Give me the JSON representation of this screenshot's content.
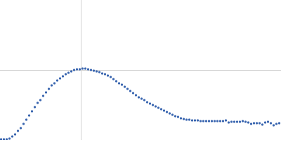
{
  "chart_data": {
    "type": "scatter",
    "color": "#3a66b0",
    "grid": true,
    "xlim": [
      0,
      400
    ],
    "ylim": [
      0,
      200
    ],
    "xticks": [
      115
    ],
    "yticks": [
      100
    ],
    "x": [
      0,
      4,
      8,
      12,
      16,
      20,
      24,
      28,
      32,
      36,
      40,
      44,
      48,
      52,
      56,
      60,
      64,
      68,
      72,
      76,
      80,
      84,
      88,
      92,
      96,
      100,
      104,
      108,
      112,
      116,
      120,
      124,
      128,
      132,
      136,
      140,
      144,
      148,
      152,
      156,
      160,
      164,
      168,
      172,
      176,
      180,
      184,
      188,
      192,
      196,
      200,
      204,
      208,
      212,
      216,
      220,
      224,
      228,
      232,
      236,
      240,
      244,
      248,
      252,
      256,
      260,
      264,
      268,
      272,
      276,
      280,
      284,
      288,
      292,
      296,
      300,
      304,
      308,
      312,
      316,
      320,
      324,
      328,
      332,
      336,
      340,
      344,
      348,
      352,
      356,
      360,
      364,
      368,
      372,
      376,
      380,
      384,
      388,
      392,
      396
    ],
    "values": [
      1,
      1,
      1,
      2,
      5,
      8,
      13,
      17,
      23,
      29,
      35,
      41,
      47,
      53,
      57,
      63,
      68,
      73,
      78,
      81,
      85,
      88,
      91,
      94,
      96,
      98,
      100,
      101,
      101,
      102,
      102,
      101,
      100,
      99,
      98,
      97,
      95,
      94,
      92,
      90,
      87,
      84,
      81,
      79,
      76,
      73,
      70,
      67,
      64,
      61,
      59,
      57,
      54,
      52,
      50,
      48,
      46,
      44,
      42,
      40,
      38,
      36,
      34,
      33,
      31,
      30,
      29,
      29,
      28,
      28,
      28,
      27,
      27,
      27,
      27,
      27,
      27,
      27,
      27,
      27,
      28,
      25,
      26,
      26,
      26,
      26,
      27,
      26,
      25,
      23,
      24,
      24,
      24,
      22,
      25,
      26,
      24,
      21,
      23,
      24
    ]
  }
}
